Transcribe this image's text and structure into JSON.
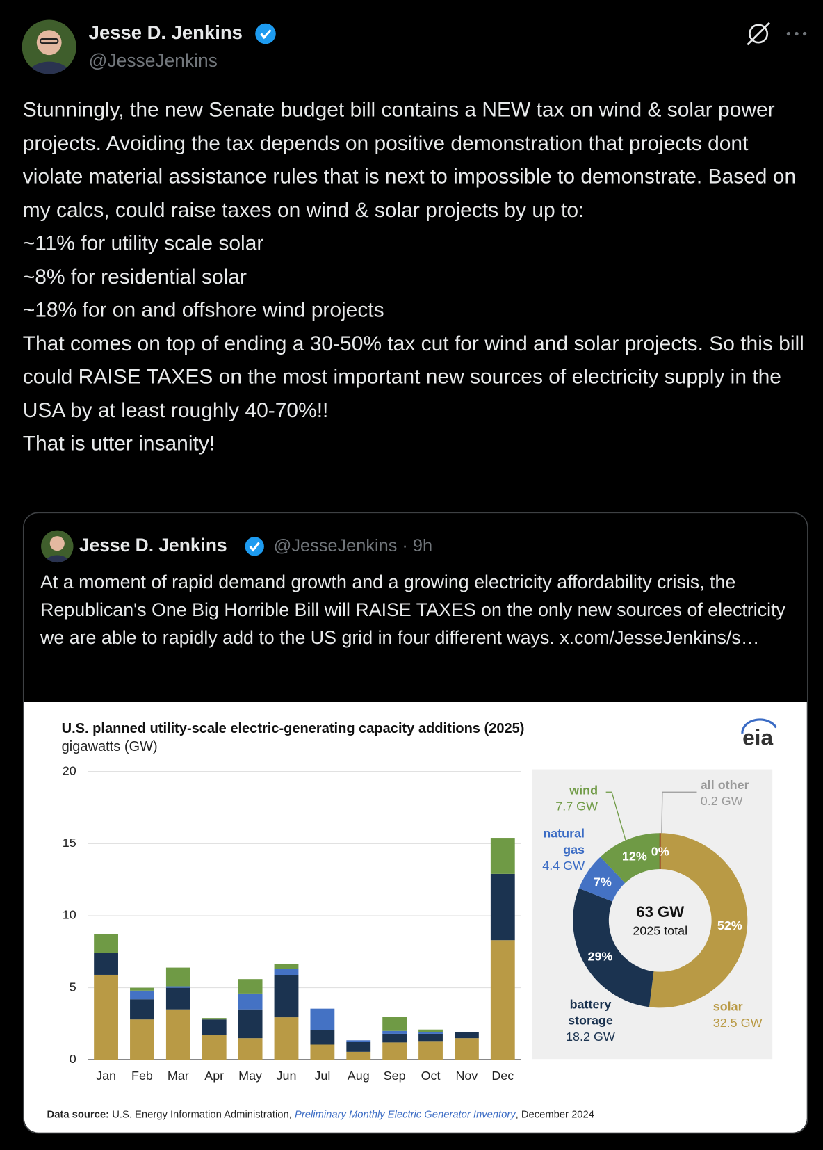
{
  "tweet": {
    "author": {
      "name": "Jesse D. Jenkins",
      "handle": "@JesseJenkins"
    },
    "text": [
      "Stunningly, the new Senate budget bill contains a NEW tax on wind & solar power projects. Avoiding the tax depends on positive demonstration that projects dont violate material assistance rules that is next to impossible to demonstrate. Based on my calcs, could raise taxes on wind & solar projects by up to:",
      "~11% for utility scale solar",
      "~8% for residential solar",
      "~18% for on and offshore wind projects",
      "That comes on top of ending a 30-50% tax cut for wind and solar projects. So this bill could RAISE TAXES on the most important new sources of electricity supply in the USA by at least roughly 40-70%!!",
      "That is utter insanity!"
    ]
  },
  "quoted_tweet": {
    "author": {
      "name": "Jesse D. Jenkins",
      "handle": "@JesseJenkins"
    },
    "time": "9h",
    "text": "At a moment of rapid demand growth and a growing electricity affordability crisis, the Republican's One Big Horrible Bill will RAISE TAXES on the only new sources of electricity we are able to rapidly add to the US grid in four different ways.  x.com/JesseJenkins/s…"
  },
  "chart_data": [
    {
      "type": "bar",
      "stacked": true,
      "title": "U.S. planned utility-scale electric-generating capacity additions (2025)",
      "subtitle": "gigawatts (GW)",
      "logo": "eia",
      "categories": [
        "Jan",
        "Feb",
        "Mar",
        "Apr",
        "May",
        "Jun",
        "Jul",
        "Aug",
        "Sep",
        "Oct",
        "Nov",
        "Dec"
      ],
      "series": [
        {
          "name": "solar",
          "color": "#b99a45",
          "values": [
            5.9,
            2.8,
            3.5,
            1.7,
            1.5,
            2.95,
            1.05,
            0.55,
            1.2,
            1.3,
            1.5,
            8.3
          ]
        },
        {
          "name": "battery storage",
          "color": "#1b3350",
          "values": [
            1.5,
            1.4,
            1.5,
            1.1,
            2.0,
            2.9,
            1.0,
            0.7,
            0.6,
            0.5,
            0.4,
            4.6
          ]
        },
        {
          "name": "natural gas",
          "color": "#4472c4",
          "values": [
            0,
            0.6,
            0.1,
            0,
            1.1,
            0.45,
            1.5,
            0.1,
            0.2,
            0.1,
            0,
            0
          ]
        },
        {
          "name": "wind",
          "color": "#6f9a45",
          "values": [
            1.3,
            0.2,
            1.3,
            0.1,
            1.0,
            0.35,
            0,
            0,
            1.0,
            0.2,
            0,
            2.5
          ]
        }
      ],
      "ylim": [
        0,
        20
      ],
      "yticks": [
        0,
        5,
        10,
        15,
        20
      ],
      "grid": true
    },
    {
      "type": "pie",
      "donut": true,
      "center_title": "63 GW",
      "center_subtitle": "2025 total",
      "categories": [
        "solar",
        "battery storage",
        "natural gas",
        "wind",
        "all other"
      ],
      "values": [
        52,
        29,
        7,
        12,
        0
      ],
      "value_labels": [
        "52%",
        "29%",
        "7%",
        "12%",
        "0%"
      ],
      "capacity_labels": [
        "32.5 GW",
        "18.2 GW",
        "4.4 GW",
        "7.7 GW",
        "0.2 GW"
      ],
      "colors": [
        "#b99a45",
        "#1b3350",
        "#4472c4",
        "#6f9a45",
        "#a0522d"
      ],
      "label_colors": [
        "#b99a45",
        "#1b3350",
        "#3a6bc4",
        "#6f9a45",
        "#9a9a9a"
      ]
    }
  ],
  "chart_source": {
    "label": "Data source:",
    "text": "U.S. Energy Information Administration,",
    "link": "Preliminary Monthly Electric Generator Inventory",
    "date": ", December 2024"
  }
}
